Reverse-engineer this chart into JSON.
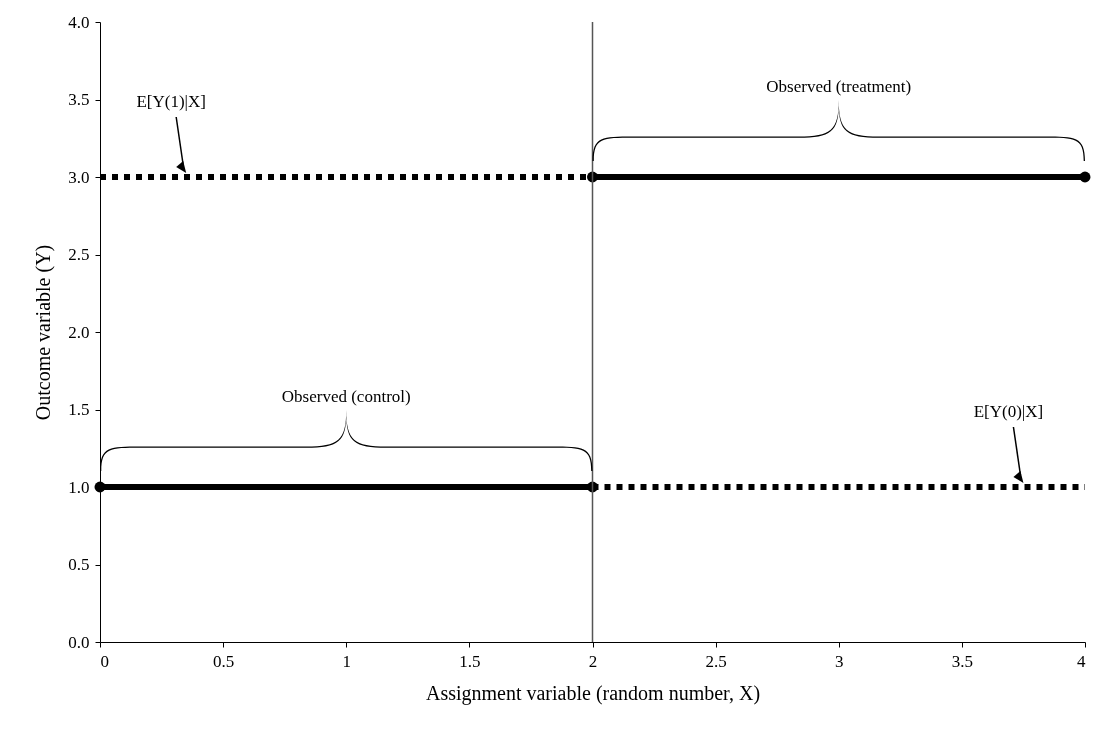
{
  "chart_data": {
    "type": "line",
    "xlabel": "Assignment variable (random number, X)",
    "ylabel": "Outcome variable (Y)",
    "xlim": [
      0,
      4
    ],
    "ylim": [
      0,
      4
    ],
    "xticks": [
      0,
      0.5,
      1,
      1.5,
      2,
      2.5,
      3,
      3.5,
      4
    ],
    "yticks": [
      {
        "value": 0,
        "label": "0.0"
      },
      {
        "value": 0.5,
        "label": "0.5"
      },
      {
        "value": 1,
        "label": "1.0"
      },
      {
        "value": 1.5,
        "label": "1.5"
      },
      {
        "value": 2,
        "label": "2.0"
      },
      {
        "value": 2.5,
        "label": "2.5"
      },
      {
        "value": 3,
        "label": "3.0"
      },
      {
        "value": 3.5,
        "label": "3.5"
      },
      {
        "value": 4,
        "label": "4.0"
      }
    ],
    "grid": false,
    "series": [
      {
        "color": "#000000",
        "x": [
          0,
          2
        ],
        "values": [
          3,
          3
        ],
        "line_style": "dotted"
      },
      {
        "color": "#000000",
        "x": [
          2,
          4
        ],
        "values": [
          3,
          3
        ],
        "line_style": "solid",
        "marker": "circle"
      },
      {
        "color": "#000000",
        "x": [
          0,
          2
        ],
        "values": [
          1,
          1
        ],
        "line_style": "solid",
        "marker": "circle"
      },
      {
        "color": "#000000",
        "x": [
          2,
          4
        ],
        "values": [
          1,
          1
        ],
        "line_style": "dotted"
      }
    ],
    "ref_lines": [
      {
        "axis": "x",
        "value": 2,
        "color": "#555555"
      }
    ],
    "annotations": [
      "E[Y(1)|X]",
      "Observed (treatment)",
      "Observed (control)",
      "E[Y(0)|X]"
    ]
  }
}
